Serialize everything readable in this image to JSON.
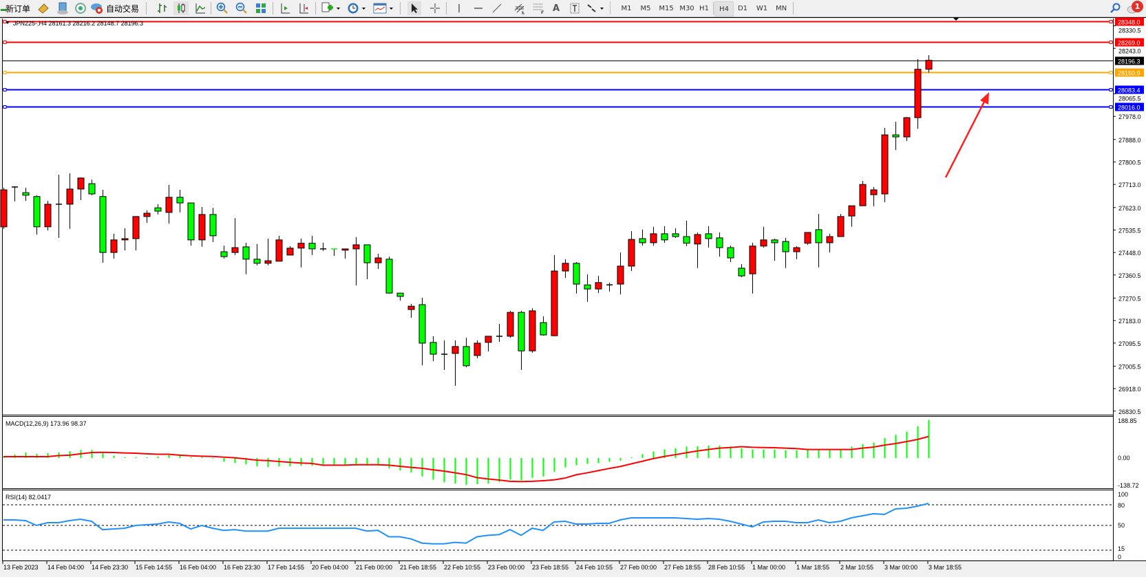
{
  "toolbar": {
    "new_order": "新订单",
    "auto_trading": "自动交易",
    "icons": [
      "new-order-icon",
      "market-watch-icon",
      "history-center-icon",
      "signals-icon",
      "auto-trading-icon",
      "bar-chart-icon",
      "candlestick-icon",
      "line-chart-icon",
      "zoom-in-icon",
      "zoom-out-icon",
      "tile-windows-icon",
      "chart-shift-icon",
      "autoscroll-icon",
      "new-chart-icon",
      "periods-icon",
      "templates-icon",
      "cursor-icon",
      "crosshair-icon",
      "vertical-line-icon",
      "horizontal-line-icon",
      "trendline-icon",
      "equidistant-channel-icon",
      "fibonacci-icon",
      "text-icon",
      "text-label-icon",
      "arrows-icon",
      "search-icon",
      "notifications-icon"
    ],
    "periods": [
      "M1",
      "M5",
      "M15",
      "M30",
      "H1",
      "H4",
      "D1",
      "W1",
      "MN"
    ],
    "active_period": "H4",
    "text_tool": "A",
    "notification_count": "1"
  },
  "chart": {
    "header": "JPN225-,H4  28161.3 28216.2 28148.7 28196.3",
    "colors": {
      "bull": "#ff0000",
      "bear": "#00ff00",
      "outline": "#000000",
      "macd_hist": "#00ff00",
      "macd_signal": "#ff0000",
      "rsi": "#1e90ff"
    },
    "price_ticks": [
      "28330.5",
      "28243.0",
      "28065.5",
      "27978.0",
      "27888.0",
      "27800.5",
      "27713.0",
      "27623.0",
      "27535.5",
      "27448.0",
      "27360.5",
      "27270.5",
      "27183.0",
      "27095.5",
      "27005.5",
      "26918.0",
      "26830.5"
    ],
    "levels": [
      {
        "price": "28348.0",
        "color": "#ff0000"
      },
      {
        "price": "28269.0",
        "color": "#ff0000"
      },
      {
        "price": "28196.3",
        "color": "#000000"
      },
      {
        "price": "28150.9",
        "color": "#ffa500"
      },
      {
        "price": "28083.4",
        "color": "#0000ff"
      },
      {
        "price": "28016.0",
        "color": "#0000ff"
      }
    ],
    "annotation": {
      "type": "arrow",
      "color": "#ff2020",
      "direction": "up-right"
    },
    "time_labels": [
      "13 Feb 2023",
      "14 Feb 04:00",
      "14 Feb 23:30",
      "15 Feb 14:55",
      "16 Feb 04:00",
      "16 Feb 23:30",
      "17 Feb 14:55",
      "20 Feb 04:00",
      "21 Feb 00:00",
      "21 Feb 18:55",
      "22 Feb 10:55",
      "23 Feb 00:00",
      "23 Feb 18:55",
      "24 Feb 10:55",
      "27 Feb 00:00",
      "27 Feb 18:55",
      "28 Feb 10:55",
      "1 Mar 00:00",
      "1 Mar 18:55",
      "2 Mar 10:55",
      "3 Mar 00:00",
      "3 Mar 18:55"
    ]
  },
  "chart_data": {
    "type": "candlestick",
    "symbol": "JPN225-",
    "timeframe": "H4",
    "ohlc": [
      [
        27548,
        27700,
        27540,
        27692
      ],
      [
        27703,
        27706,
        27647,
        27703
      ],
      [
        27681,
        27700,
        27649,
        27671
      ],
      [
        27666,
        27671,
        27518,
        27548
      ],
      [
        27548,
        27649,
        27534,
        27636
      ],
      [
        27636,
        27751,
        27505,
        27636
      ],
      [
        27636,
        27756,
        27540,
        27695
      ],
      [
        27695,
        27740,
        27652,
        27738
      ],
      [
        27716,
        27732,
        27671,
        27676
      ],
      [
        27666,
        27692,
        27408,
        27448
      ],
      [
        27448,
        27521,
        27424,
        27497
      ],
      [
        27497,
        27542,
        27456,
        27502
      ],
      [
        27502,
        27588,
        27456,
        27588
      ],
      [
        27588,
        27612,
        27564,
        27601
      ],
      [
        27622,
        27636,
        27596,
        27609
      ],
      [
        27604,
        27711,
        27561,
        27663
      ],
      [
        27663,
        27692,
        27604,
        27641
      ],
      [
        27641,
        27641,
        27475,
        27497
      ],
      [
        27497,
        27625,
        27470,
        27596
      ],
      [
        27596,
        27622,
        27489,
        27513
      ],
      [
        27451,
        27475,
        27424,
        27432
      ],
      [
        27448,
        27582,
        27438,
        27467
      ],
      [
        27470,
        27486,
        27363,
        27422
      ],
      [
        27422,
        27481,
        27398,
        27406
      ],
      [
        27406,
        27502,
        27398,
        27416
      ],
      [
        27414,
        27513,
        27414,
        27497
      ],
      [
        27438,
        27473,
        27438,
        27465
      ],
      [
        27465,
        27502,
        27390,
        27484
      ],
      [
        27484,
        27513,
        27438,
        27462
      ],
      [
        27462,
        27486,
        27454,
        27462
      ],
      [
        27462,
        27462,
        27435,
        27462
      ],
      [
        27457,
        27462,
        27424,
        27462
      ],
      [
        27462,
        27508,
        27320,
        27478
      ],
      [
        27478,
        27478,
        27344,
        27408
      ],
      [
        27408,
        27443,
        27384,
        27427
      ],
      [
        27422,
        27432,
        27288,
        27290
      ],
      [
        27290,
        27290,
        27261,
        27277
      ],
      [
        27226,
        27248,
        27194,
        27239
      ],
      [
        27245,
        27272,
        27009,
        27095
      ],
      [
        27098,
        27122,
        27025,
        27052
      ],
      [
        27052,
        27106,
        26991,
        27052
      ],
      [
        27055,
        27106,
        26929,
        27082
      ],
      [
        27082,
        27116,
        27001,
        27007
      ],
      [
        27047,
        27106,
        27036,
        27095
      ],
      [
        27098,
        27122,
        27063,
        27122
      ],
      [
        27122,
        27170,
        27100,
        27122
      ],
      [
        27122,
        27221,
        27116,
        27215
      ],
      [
        27215,
        27221,
        26991,
        27065
      ],
      [
        27065,
        27231,
        27058,
        27221
      ],
      [
        27175,
        27199,
        27124,
        27127
      ],
      [
        27124,
        27438,
        27122,
        27376
      ],
      [
        27376,
        27422,
        27349,
        27406
      ],
      [
        27406,
        27411,
        27288,
        27325
      ],
      [
        27322,
        27363,
        27256,
        27306
      ],
      [
        27306,
        27357,
        27290,
        27331
      ],
      [
        27322,
        27331,
        27296,
        27322
      ],
      [
        27325,
        27448,
        27285,
        27395
      ],
      [
        27395,
        27531,
        27376,
        27499
      ],
      [
        27502,
        27537,
        27475,
        27486
      ],
      [
        27486,
        27548,
        27475,
        27521
      ],
      [
        27521,
        27550,
        27486,
        27497
      ],
      [
        27521,
        27542,
        27505,
        27510
      ],
      [
        27510,
        27572,
        27473,
        27484
      ],
      [
        27481,
        27526,
        27387,
        27518
      ],
      [
        27521,
        27550,
        27467,
        27502
      ],
      [
        27505,
        27526,
        27432,
        27467
      ],
      [
        27467,
        27475,
        27411,
        27427
      ],
      [
        27387,
        27403,
        27352,
        27357
      ],
      [
        27365,
        27486,
        27288,
        27473
      ],
      [
        27473,
        27548,
        27467,
        27497
      ],
      [
        27497,
        27502,
        27416,
        27486
      ],
      [
        27491,
        27505,
        27387,
        27451
      ],
      [
        27451,
        27473,
        27422,
        27467
      ],
      [
        27484,
        27526,
        27478,
        27526
      ],
      [
        27537,
        27598,
        27390,
        27486
      ],
      [
        27486,
        27521,
        27448,
        27510
      ],
      [
        27510,
        27598,
        27510,
        27588
      ],
      [
        27590,
        27630,
        27548,
        27630
      ],
      [
        27630,
        27727,
        27630,
        27713
      ],
      [
        27673,
        27703,
        27628,
        27692
      ],
      [
        27676,
        27933,
        27644,
        27906
      ],
      [
        27906,
        27957,
        27847,
        27898
      ],
      [
        27898,
        27976,
        27882,
        27973
      ],
      [
        27973,
        28201,
        27930,
        28161.3
      ],
      [
        28161.3,
        28216.2,
        28148.7,
        28196.3
      ]
    ],
    "price_range": [
      26830.5,
      28348.0
    ],
    "macd": {
      "title": "MACD(12,26,9) 173.96 98.37",
      "axis_labels": [
        "188.85",
        "0.00",
        "-138.72"
      ],
      "range": [
        -138.72,
        188.85
      ],
      "histogram": [
        7,
        16,
        25,
        19,
        22,
        25,
        31,
        37,
        37,
        21,
        10,
        4,
        4,
        4,
        7,
        13,
        10,
        4,
        4,
        -3,
        -17,
        -23,
        -29,
        -38,
        -41,
        -38,
        -38,
        -35,
        -35,
        -35,
        -35,
        -35,
        -35,
        -35,
        -35,
        -47,
        -57,
        -66,
        -84,
        -99,
        -111,
        -117,
        -123,
        -120,
        -117,
        -110,
        -99,
        -103,
        -91,
        -84,
        -63,
        -43,
        -33,
        -27,
        -23,
        -17,
        -12,
        3,
        18,
        30,
        39,
        45,
        52,
        54,
        57,
        57,
        53,
        45,
        39,
        39,
        39,
        36,
        36,
        39,
        36,
        36,
        36,
        52,
        64,
        70,
        91,
        106,
        121,
        145,
        173.96
      ],
      "signal": [
        6,
        6,
        6,
        6,
        6,
        11,
        13,
        19,
        25,
        26,
        25,
        23,
        22,
        19,
        17,
        17,
        13,
        10,
        8,
        7,
        4,
        1,
        -4,
        -10,
        -12,
        -16,
        -20,
        -23,
        -25,
        -33,
        -33,
        -33,
        -31,
        -31,
        -31,
        -33,
        -38,
        -43,
        -47,
        -54,
        -60,
        -68,
        -76,
        -90,
        -96,
        -101,
        -107,
        -108,
        -107,
        -104,
        -100,
        -92,
        -77,
        -68,
        -58,
        -48,
        -39,
        -27,
        -15,
        -3,
        7,
        15,
        24,
        32,
        39,
        45,
        48,
        52,
        49,
        48,
        47,
        45,
        43,
        39,
        39,
        39,
        39,
        39,
        45,
        50,
        59,
        66,
        75,
        85,
        98.37
      ]
    },
    "rsi": {
      "title": "RSI(14) 82.0417",
      "axis_labels": [
        "100",
        "80",
        "50",
        "15",
        "0"
      ],
      "levels": [
        80,
        50,
        15
      ],
      "range": [
        0,
        100
      ],
      "values": [
        58,
        58,
        57,
        50,
        54,
        54,
        57,
        59,
        56,
        44,
        45,
        46,
        50,
        51,
        52,
        55,
        53,
        45,
        50,
        46,
        43,
        44,
        42,
        42,
        42,
        46,
        46,
        46,
        46,
        46,
        46,
        46,
        46,
        42,
        43,
        34,
        34,
        31,
        25,
        24,
        24,
        26,
        25,
        34,
        36,
        37,
        44,
        36,
        46,
        43,
        55,
        56,
        52,
        52,
        53,
        53,
        58,
        61,
        61,
        61,
        61,
        61,
        60,
        59,
        60,
        59,
        56,
        52,
        48,
        55,
        56,
        56,
        54,
        54,
        58,
        54,
        56,
        61,
        64,
        67,
        66,
        74,
        75,
        78,
        82.04
      ]
    }
  }
}
